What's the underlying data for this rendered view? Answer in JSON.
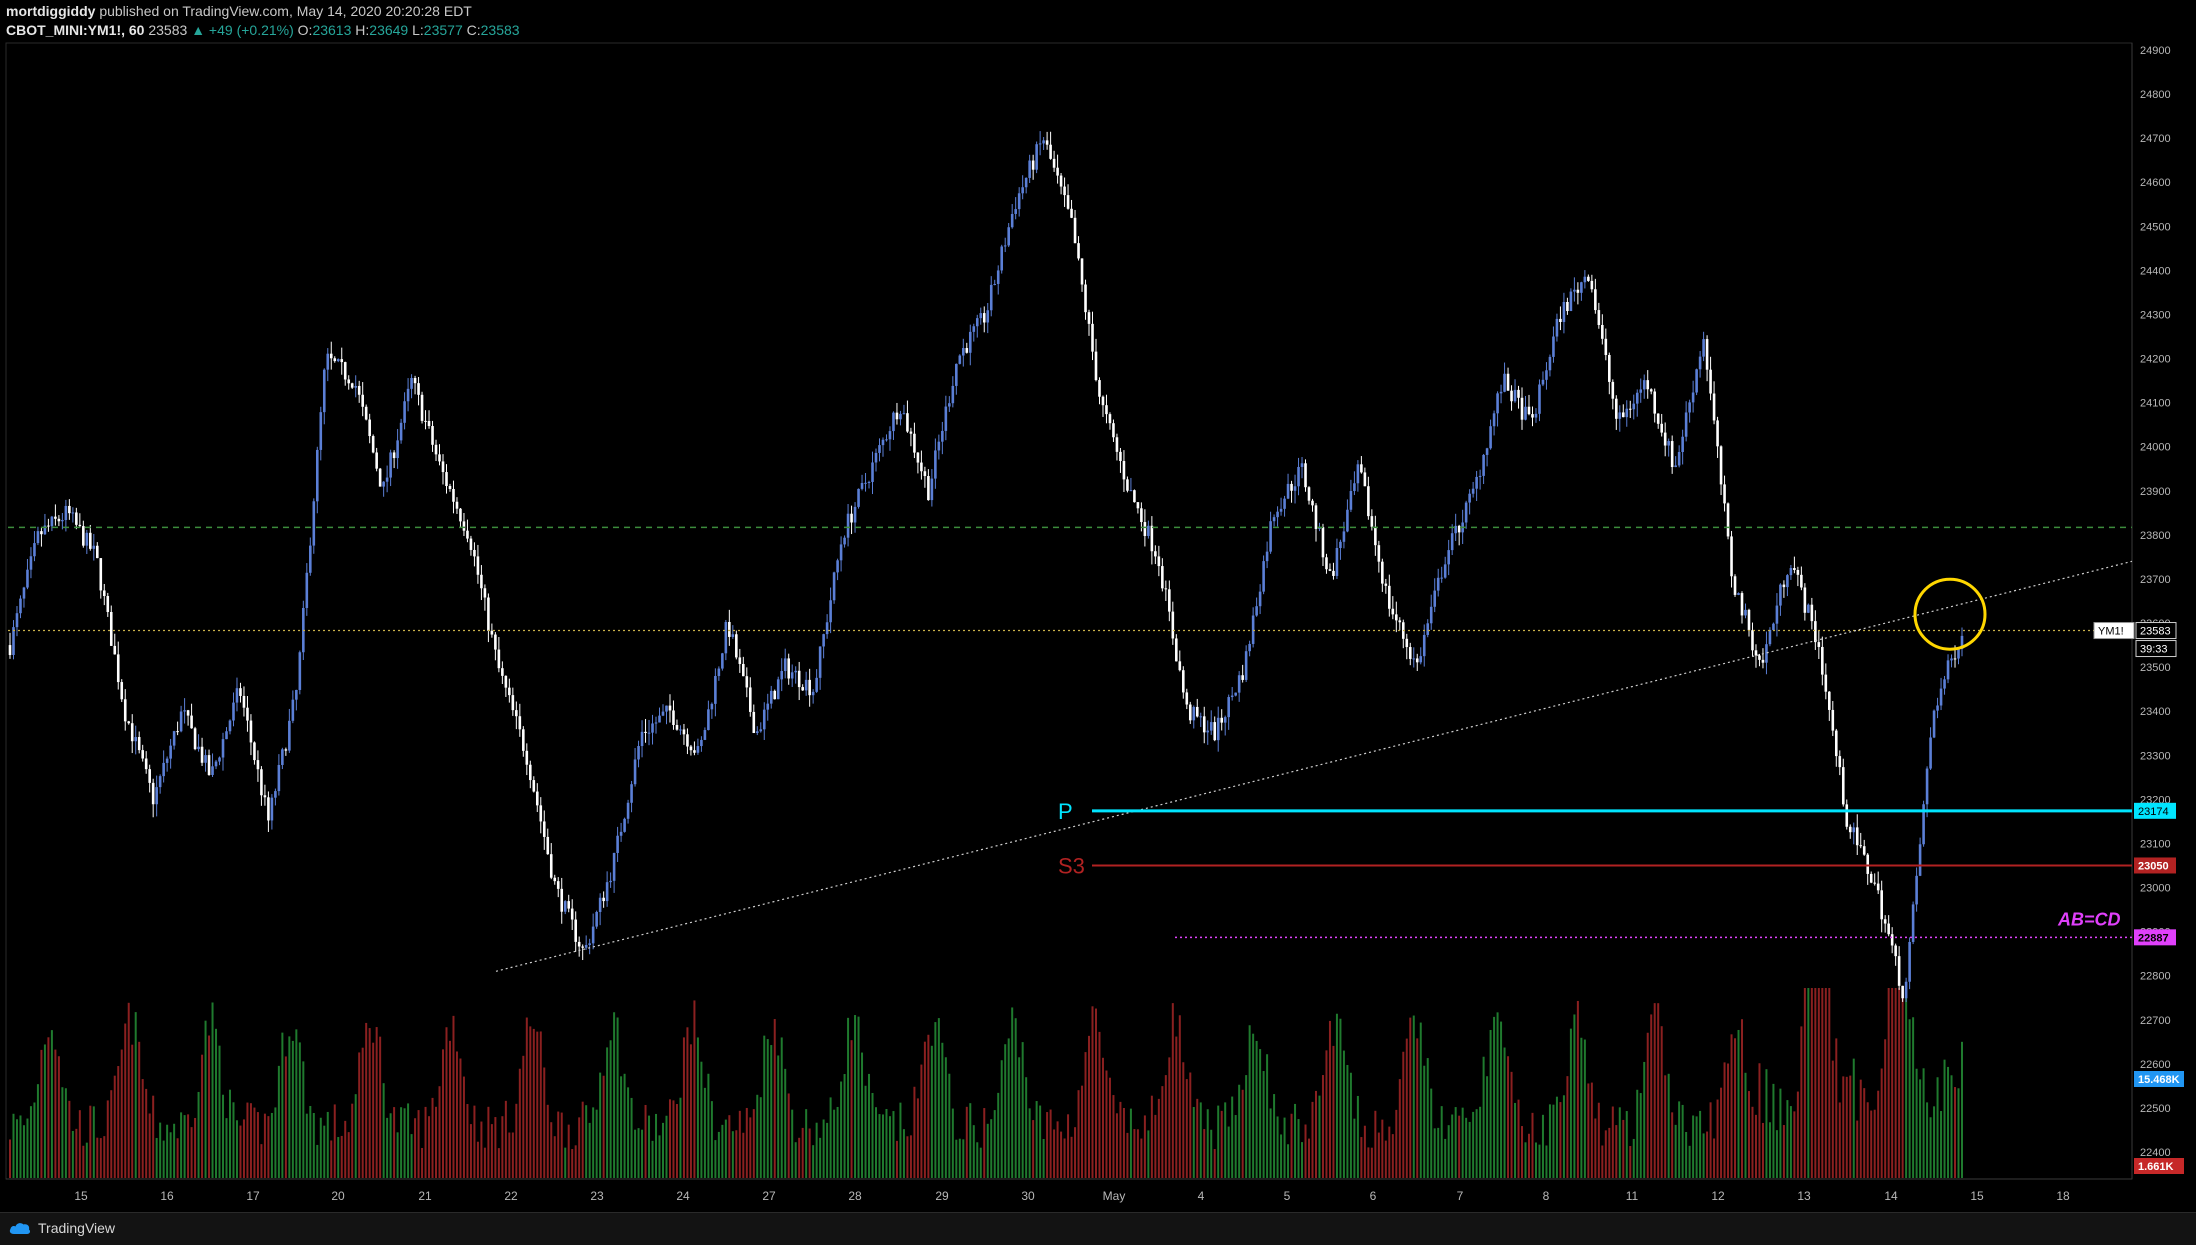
{
  "header": {
    "author": "mortdiggiddy",
    "published": "published on TradingView.com, May 14, 2020 20:20:28 EDT",
    "symbol": "CBOT_MINI:YM1!, 60",
    "last": "23583",
    "change": "▲ +49 (+0.21%)",
    "o_label": "O:",
    "o_value": "23613",
    "h_label": "H:",
    "h_value": "23649",
    "l_label": "L:",
    "l_value": "23577",
    "c_label": "C:",
    "c_value": "23583"
  },
  "footer": {
    "brand": "TradingView"
  },
  "colors": {
    "background": "#000000",
    "up_candle": "#5b7fd6",
    "down_candle": "#ffffff",
    "vol_up": "#1f7a2e",
    "vol_down": "#8b2020",
    "pivot_p": "#00e5ff",
    "pivot_s3": "#b22222",
    "abcd": "#e040fb",
    "circle": "#ffd700",
    "level_dashed": "#3c8c3c"
  },
  "chart_data": {
    "type": "candlestick",
    "timeframe": "60",
    "price_axis": {
      "ticks": [
        24900,
        24800,
        24700,
        24600,
        24500,
        24400,
        24300,
        24200,
        24100,
        24000,
        23900,
        23800,
        23700,
        23600,
        23500,
        23400,
        23300,
        23200,
        23100,
        23000,
        22900,
        22800,
        22700,
        22600,
        22500,
        22400
      ],
      "tick_labels": [
        "24900",
        "24800",
        "24700",
        "24600",
        "24500",
        "24400",
        "24300",
        "24200",
        "24100",
        "24000",
        "23900",
        "23800",
        "23700",
        "23600",
        "23500",
        "23400",
        "23300",
        "23200",
        "23100",
        "23000",
        "22900",
        "22800",
        "22700",
        "22600",
        "22500",
        "22400"
      ],
      "range": [
        22350,
        24920
      ]
    },
    "time_axis": {
      "labels": [
        "15",
        "16",
        "17",
        "20",
        "21",
        "22",
        "23",
        "24",
        "27",
        "28",
        "29",
        "30",
        "May",
        "4",
        "5",
        "6",
        "7",
        "8",
        "11",
        "12",
        "13",
        "14",
        "15",
        "18"
      ]
    },
    "approx_closes": [
      [
        0,
        23550
      ],
      [
        1,
        23800
      ],
      [
        2,
        23850
      ],
      [
        3,
        23750
      ],
      [
        4,
        23400
      ],
      [
        5,
        23200
      ],
      [
        6,
        23400
      ],
      [
        7,
        23250
      ],
      [
        8,
        23450
      ],
      [
        9,
        23150
      ],
      [
        10,
        23450
      ],
      [
        11,
        24200
      ],
      [
        12,
        24150
      ],
      [
        13,
        23900
      ],
      [
        14,
        24150
      ],
      [
        15,
        23950
      ],
      [
        16,
        23800
      ],
      [
        17,
        23500
      ],
      [
        18,
        23300
      ],
      [
        19,
        23000
      ],
      [
        20,
        22850
      ],
      [
        21,
        23050
      ],
      [
        22,
        23350
      ],
      [
        23,
        23400
      ],
      [
        24,
        23300
      ],
      [
        25,
        23600
      ],
      [
        26,
        23350
      ],
      [
        27,
        23500
      ],
      [
        28,
        23450
      ],
      [
        29,
        23800
      ],
      [
        30,
        23950
      ],
      [
        31,
        24100
      ],
      [
        32,
        23900
      ],
      [
        33,
        24200
      ],
      [
        34,
        24300
      ],
      [
        35,
        24550
      ],
      [
        36,
        24700
      ],
      [
        37,
        24500
      ],
      [
        38,
        24100
      ],
      [
        39,
        23900
      ],
      [
        40,
        23750
      ],
      [
        41,
        23400
      ],
      [
        42,
        23350
      ],
      [
        43,
        23500
      ],
      [
        44,
        23850
      ],
      [
        45,
        23950
      ],
      [
        46,
        23700
      ],
      [
        47,
        23950
      ],
      [
        48,
        23650
      ],
      [
        49,
        23500
      ],
      [
        50,
        23750
      ],
      [
        51,
        23900
      ],
      [
        52,
        24150
      ],
      [
        53,
        24050
      ],
      [
        54,
        24300
      ],
      [
        55,
        24400
      ],
      [
        56,
        24050
      ],
      [
        57,
        24150
      ],
      [
        58,
        23950
      ],
      [
        59,
        24250
      ],
      [
        60,
        23700
      ],
      [
        61,
        23500
      ],
      [
        62,
        23750
      ],
      [
        63,
        23550
      ],
      [
        64,
        23150
      ],
      [
        65,
        23000
      ],
      [
        66,
        22750
      ],
      [
        67,
        23400
      ],
      [
        68,
        23583
      ]
    ],
    "volume_axis": {
      "labels": [
        "15.468K",
        "1.661K"
      ]
    },
    "overlays": {
      "pivot_p": {
        "label": "P",
        "value": 23174,
        "value_label": "23174"
      },
      "pivot_s3": {
        "label": "S3",
        "value": 23050,
        "value_label": "23050"
      },
      "abcd": {
        "label": "AB=CD",
        "value": 22887,
        "value_label": "22887"
      },
      "last_price": {
        "tag": "YM1!",
        "value": 23583,
        "value_label": "23583",
        "countdown": "39:33"
      },
      "dashed_level": 23817,
      "trendline": {
        "from": [
          "21",
          22810
        ],
        "to": [
          "15",
          23740
        ]
      }
    }
  }
}
